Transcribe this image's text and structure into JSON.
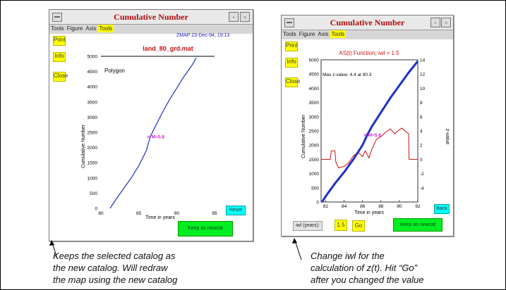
{
  "left_window": {
    "title": "Cumulative Number",
    "menu": [
      "Tools",
      "Figure",
      "Axis",
      "Tools"
    ],
    "buttons": {
      "print": "Print",
      "info": "Info",
      "close": "Close",
      "reset": "Reset",
      "keep": "Keep as newcat"
    },
    "date": "ZMAP 23-Dec-94, 19:13",
    "chart_data": {
      "type": "line",
      "title": "land_80_grd.mat",
      "xlabel": "Time in years",
      "ylabel": "Cumulative Number",
      "xlim": [
        80,
        95
      ],
      "ylim": [
        0,
        5000
      ],
      "x_ticks": [
        "80",
        "85",
        "90",
        "95"
      ],
      "y_ticks": [
        "0",
        "500",
        "1000",
        "1500",
        "2000",
        "2500",
        "3000",
        "3500",
        "4000",
        "4500",
        "5000"
      ],
      "annotation_polygon": "Polygon",
      "marker_label": "M=5.8",
      "marker": [
        86.3,
        2350
      ],
      "series": [
        {
          "x": [
            81.2,
            82,
            83,
            84,
            85,
            86,
            86.5,
            87,
            88,
            89,
            90,
            91,
            92,
            92.6
          ],
          "y": [
            0,
            300,
            650,
            1000,
            1400,
            1900,
            2350,
            2600,
            3100,
            3550,
            3950,
            4350,
            4700,
            4950
          ]
        }
      ]
    }
  },
  "right_window": {
    "title": "Cumulative Number",
    "menu": [
      "Tools",
      "Figure",
      "Axis",
      "Tools"
    ],
    "buttons": {
      "print": "Print",
      "info": "Info",
      "close": "Close",
      "back": "Back",
      "keep": "Keep as newcat",
      "go": "Go"
    },
    "iwl_label": "iwl (years):",
    "iwl_value": "1.5",
    "chart_data": {
      "type": "line",
      "title": "AS(t) Function; iwl = 1.5",
      "xlabel": "Time in years",
      "ylabel": "Cumulative Number",
      "y2label": "z-value",
      "xlim": [
        81.5,
        92
      ],
      "ylim": [
        0,
        5000
      ],
      "y2lim": [
        -6,
        14
      ],
      "x_ticks": [
        "82",
        "84",
        "86",
        "88",
        "90",
        "92"
      ],
      "y_ticks": [
        "0",
        "500",
        "1000",
        "1500",
        "2000",
        "2500",
        "3000",
        "3500",
        "4000",
        "4500",
        "5000"
      ],
      "y2_ticks": [
        "-4",
        "-2",
        "0",
        "2",
        "4",
        "6",
        "8",
        "10",
        "12",
        "14"
      ],
      "annotation_max": "Max z-value: 4.4 at 90.3",
      "marker_label": "M=5.8",
      "marker": [
        86.3,
        2350
      ],
      "series": [
        {
          "name": "cumulative",
          "x": [
            81.6,
            82,
            83,
            84,
            85,
            86,
            86.5,
            87,
            88,
            89,
            90,
            91,
            92
          ],
          "y": [
            0,
            200,
            650,
            1050,
            1500,
            2000,
            2350,
            2650,
            3150,
            3650,
            4100,
            4550,
            4950
          ]
        },
        {
          "name": "z-value",
          "x": [
            81.5,
            82.5,
            82.6,
            83,
            83.1,
            83.4,
            84,
            84.5,
            85,
            85.5,
            86,
            86.3,
            86.7,
            87,
            87.5,
            88,
            88.5,
            89,
            89.5,
            90,
            90.3,
            90.6,
            91,
            91.05,
            92
          ],
          "y": [
            0,
            0,
            1.2,
            1.2,
            -0.4,
            -1.2,
            -1,
            -0.5,
            0.5,
            1.0,
            0.4,
            1.2,
            0.2,
            1.4,
            2.8,
            3.2,
            3.8,
            4.3,
            3.6,
            4.2,
            4.4,
            4.0,
            3.6,
            0,
            0
          ]
        }
      ]
    }
  },
  "captions": {
    "left": [
      "Keeps the selected catalog as",
      "the new catalog. Will redraw",
      "the map using the new catalog"
    ],
    "right": [
      "Change iwl for the",
      "calculation of z(t). Hit “Go”",
      "after you changed the value"
    ]
  },
  "colors": {
    "title_red": "#b20a0a",
    "curve_blue": "#2030c8",
    "z_red": "#cc1010",
    "marker_magenta": "#cc22cc",
    "button_yellow": "#ffff00",
    "button_cyan": "#00ffff",
    "button_green": "#00ee22"
  },
  "icons": [
    "window-menu-icon",
    "minimize-icon",
    "maximize-icon",
    "arrow-pointer-icon"
  ]
}
